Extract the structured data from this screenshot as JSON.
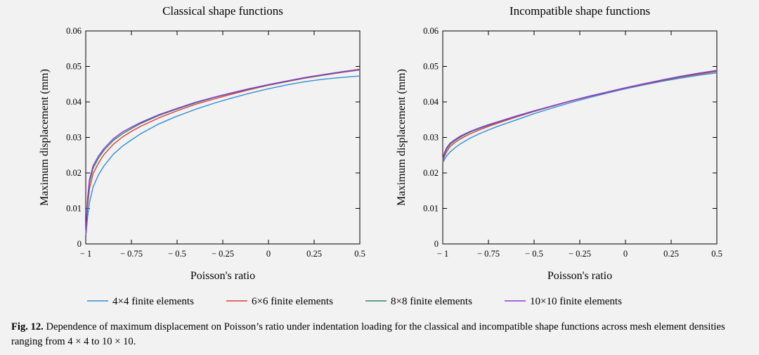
{
  "chart_data": [
    {
      "type": "line",
      "title": "Classical shape functions",
      "xlabel": "Poisson's ratio",
      "ylabel": "Maximum displacement (mm)",
      "xlim": [
        -1,
        0.5
      ],
      "ylim": [
        0,
        0.06
      ],
      "xticks": [
        -1,
        -0.75,
        -0.5,
        -0.25,
        0,
        0.25,
        0.5
      ],
      "xtick_labels": [
        "− 1",
        "− 0.75",
        "− 0.5",
        "− 0.25",
        "0",
        "0.25",
        "0.5"
      ],
      "yticks": [
        0,
        0.01,
        0.02,
        0.03,
        0.04,
        0.05,
        0.06
      ],
      "ytick_labels": [
        "0",
        "0.01",
        "0.02",
        "0.03",
        "0.04",
        "0.05",
        "0.06"
      ],
      "x": [
        -1.0,
        -0.99,
        -0.98,
        -0.96,
        -0.93,
        -0.9,
        -0.85,
        -0.8,
        -0.75,
        -0.7,
        -0.6,
        -0.5,
        -0.4,
        -0.3,
        -0.2,
        -0.1,
        0.0,
        0.1,
        0.2,
        0.3,
        0.4,
        0.5
      ],
      "series": [
        {
          "name": "4×4 finite elements",
          "color": "#2f8fd8",
          "values": [
            0.002,
            0.0075,
            0.0115,
            0.016,
            0.0195,
            0.022,
            0.0252,
            0.0275,
            0.0293,
            0.031,
            0.0338,
            0.036,
            0.0379,
            0.0396,
            0.0411,
            0.0425,
            0.0437,
            0.0448,
            0.0457,
            0.0464,
            0.0469,
            0.0473
          ]
        },
        {
          "name": "6×6 finite elements",
          "color": "#e23b3b",
          "values": [
            0.002,
            0.0105,
            0.0155,
            0.0198,
            0.0228,
            0.0252,
            0.028,
            0.0301,
            0.0317,
            0.0331,
            0.0355,
            0.0375,
            0.0393,
            0.0408,
            0.0422,
            0.0435,
            0.0447,
            0.0457,
            0.0467,
            0.0475,
            0.0483,
            0.049
          ]
        },
        {
          "name": "8×8 finite elements",
          "color": "#2a8a5a",
          "values": [
            0.002,
            0.012,
            0.0172,
            0.0213,
            0.0242,
            0.0264,
            0.0291,
            0.031,
            0.0325,
            0.0339,
            0.0362,
            0.038,
            0.0397,
            0.0412,
            0.0425,
            0.0437,
            0.0448,
            0.0458,
            0.0468,
            0.0476,
            0.0484,
            0.0491
          ]
        },
        {
          "name": "10×10 finite elements",
          "color": "#8a3ad8",
          "values": [
            0.002,
            0.0128,
            0.018,
            0.022,
            0.0248,
            0.0269,
            0.0296,
            0.0315,
            0.0329,
            0.0342,
            0.0364,
            0.0382,
            0.0399,
            0.0413,
            0.0426,
            0.0438,
            0.0449,
            0.0459,
            0.0469,
            0.0477,
            0.0485,
            0.0492
          ]
        }
      ]
    },
    {
      "type": "line",
      "title": "Incompatible shape functions",
      "xlabel": "Poisson's ratio",
      "ylabel": "Maximum displacement (mm)",
      "xlim": [
        -1,
        0.5
      ],
      "ylim": [
        0,
        0.06
      ],
      "xticks": [
        -1,
        -0.75,
        -0.5,
        -0.25,
        0,
        0.25,
        0.5
      ],
      "xtick_labels": [
        "− 1",
        "− 0.75",
        "− 0.5",
        "− 0.25",
        "0",
        "0.25",
        "0.5"
      ],
      "yticks": [
        0,
        0.01,
        0.02,
        0.03,
        0.04,
        0.05,
        0.06
      ],
      "ytick_labels": [
        "0",
        "0.01",
        "0.02",
        "0.03",
        "0.04",
        "0.05",
        "0.06"
      ],
      "x": [
        -1.0,
        -0.99,
        -0.98,
        -0.96,
        -0.93,
        -0.9,
        -0.85,
        -0.8,
        -0.75,
        -0.7,
        -0.6,
        -0.5,
        -0.4,
        -0.3,
        -0.2,
        -0.1,
        0.0,
        0.1,
        0.2,
        0.3,
        0.4,
        0.5
      ],
      "series": [
        {
          "name": "4×4 finite elements",
          "color": "#2f8fd8",
          "values": [
            0.0228,
            0.0238,
            0.0247,
            0.0259,
            0.0272,
            0.0283,
            0.0298,
            0.031,
            0.0321,
            0.0331,
            0.0349,
            0.0367,
            0.0383,
            0.0398,
            0.0412,
            0.0425,
            0.0437,
            0.0448,
            0.0458,
            0.0467,
            0.0475,
            0.0482
          ]
        },
        {
          "name": "6×6 finite elements",
          "color": "#e23b3b",
          "values": [
            0.0232,
            0.0247,
            0.0259,
            0.0274,
            0.0287,
            0.0297,
            0.031,
            0.0321,
            0.0331,
            0.034,
            0.0357,
            0.0373,
            0.0388,
            0.0402,
            0.0415,
            0.0427,
            0.0439,
            0.045,
            0.046,
            0.047,
            0.0478,
            0.0486
          ]
        },
        {
          "name": "8×8 finite elements",
          "color": "#2a8a5a",
          "values": [
            0.0236,
            0.0253,
            0.0266,
            0.028,
            0.0292,
            0.0302,
            0.0315,
            0.0325,
            0.0334,
            0.0343,
            0.0359,
            0.0374,
            0.0389,
            0.0403,
            0.0416,
            0.0428,
            0.044,
            0.0451,
            0.0461,
            0.0471,
            0.048,
            0.0488
          ]
        },
        {
          "name": "10×10 finite elements",
          "color": "#8a3ad8",
          "values": [
            0.024,
            0.0258,
            0.027,
            0.0284,
            0.0295,
            0.0305,
            0.0317,
            0.0327,
            0.0336,
            0.0344,
            0.036,
            0.0375,
            0.0389,
            0.0403,
            0.0416,
            0.0428,
            0.044,
            0.0451,
            0.0462,
            0.0472,
            0.0481,
            0.0489
          ]
        }
      ]
    }
  ],
  "legend": {
    "items": [
      {
        "label": "4×4 finite elements",
        "color": "#2f8fd8"
      },
      {
        "label": "6×6 finite elements",
        "color": "#e23b3b"
      },
      {
        "label": "8×8 finite elements",
        "color": "#2a8a5a"
      },
      {
        "label": "10×10 finite elements",
        "color": "#8a3ad8"
      }
    ]
  },
  "caption": {
    "label": "Fig. 12.",
    "text": " Dependence of maximum displacement on Poisson’s ratio under indentation loading for the classical and incompatible shape functions across mesh element densities ranging from 4 × 4 to 10 × 10."
  }
}
